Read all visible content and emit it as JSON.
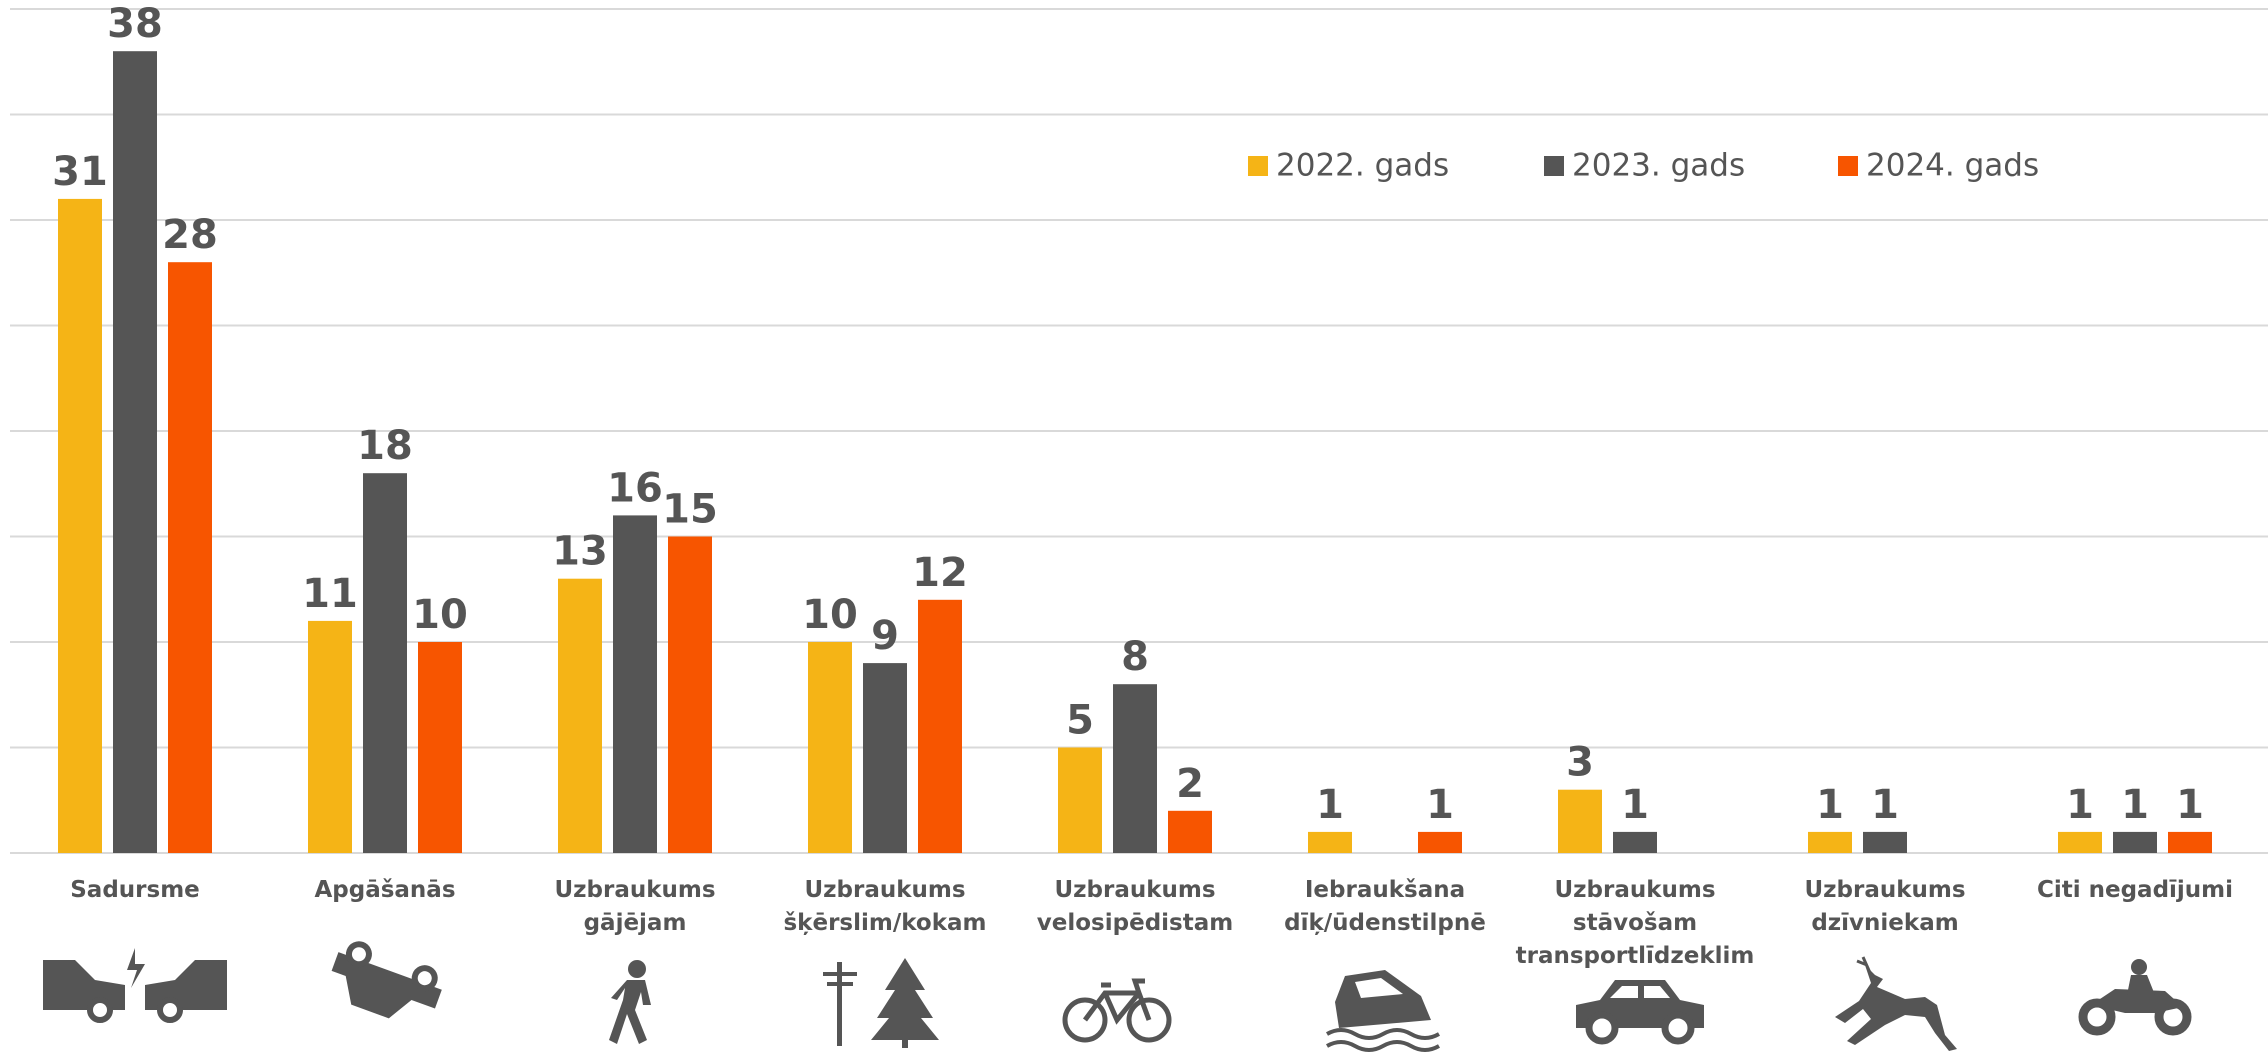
{
  "chart_data": {
    "type": "bar",
    "categories": [
      "Sadursme",
      "Apgāšanās",
      "Uzbraukums\ngājējam",
      "Uzbraukums\nšķērslim/kokam",
      "Uzbraukums\nvelosipēdistam",
      "Iebraukšana\ndīķ/ūdenstilpnē",
      "Uzbraukums\nstāvošam\ntransportlīdzeklim",
      "Uzbraukums\ndzīvniekam",
      "Citi negadījumi"
    ],
    "series": [
      {
        "name": "2022. gads",
        "color": "#f5b416",
        "values": [
          31,
          11,
          13,
          10,
          5,
          1,
          3,
          1,
          1
        ]
      },
      {
        "name": "2023. gads",
        "color": "#555555",
        "values": [
          38,
          18,
          16,
          9,
          8,
          null,
          1,
          1,
          1
        ]
      },
      {
        "name": "2024. gads",
        "color": "#f75500",
        "values": [
          28,
          10,
          15,
          12,
          2,
          1,
          null,
          null,
          1
        ]
      }
    ],
    "ylim": [
      0,
      40
    ],
    "yticks": [
      0,
      5,
      10,
      15,
      20,
      25,
      30,
      35,
      40
    ],
    "grid": true,
    "legend": "top-right"
  }
}
